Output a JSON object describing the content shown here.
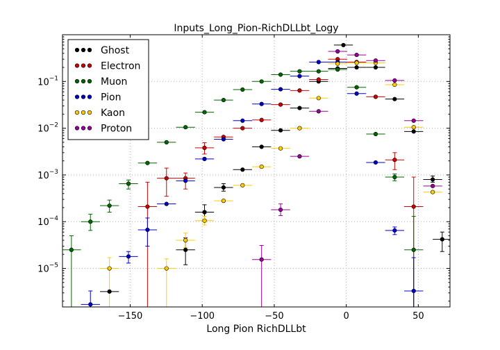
{
  "chart_data": {
    "type": "scatter",
    "title": "Inputs_Long_Pion-RichDLLbt_Logy",
    "xlabel": "Long Pion RichDLLbt",
    "ylabel": "",
    "xlim": [
      -197,
      72
    ],
    "ylim": [
      1.5e-06,
      1.0
    ],
    "yscale": "log",
    "bin_half_width": 6.6,
    "grid": true,
    "legend_position": "top-left",
    "x_ticks": [
      -150,
      -100,
      -50,
      0,
      50
    ],
    "x_tick_labels": [
      "−150",
      "−100",
      "−50",
      "0",
      "50"
    ],
    "y_ticks": [
      {
        "value": 1e-05,
        "base": "10",
        "exp": "−5"
      },
      {
        "value": 0.0001,
        "base": "10",
        "exp": "−4"
      },
      {
        "value": 0.001,
        "base": "10",
        "exp": "−3"
      },
      {
        "value": 0.01,
        "base": "10",
        "exp": "−2"
      },
      {
        "value": 0.1,
        "base": "10",
        "exp": "−1"
      }
    ],
    "series": [
      {
        "name": "Ghost",
        "color": "#000000",
        "points": [
          {
            "x": -164.4,
            "y": 3.2e-06
          },
          {
            "x": -111.6,
            "y": 2.5e-05,
            "lo": 1.2e-05,
            "hi": 4.5e-05
          },
          {
            "x": -98.4,
            "y": 0.00016,
            "lo": 0.00011,
            "hi": 0.00023
          },
          {
            "x": -85.2,
            "y": 0.00054,
            "lo": 0.00045,
            "hi": 0.00065
          },
          {
            "x": -72,
            "y": 0.0013
          },
          {
            "x": -58.8,
            "y": 0.004
          },
          {
            "x": -45.6,
            "y": 0.009
          },
          {
            "x": -32.4,
            "y": 0.027
          },
          {
            "x": -19.2,
            "y": 0.1
          },
          {
            "x": -6,
            "y": 0.19
          },
          {
            "x": -2,
            "y": 0.6
          },
          {
            "x": 7.2,
            "y": 0.2
          },
          {
            "x": 20.4,
            "y": 0.2
          },
          {
            "x": 33.6,
            "y": 0.042
          },
          {
            "x": 46.8,
            "y": 0.0085
          },
          {
            "x": 60,
            "y": 0.0008,
            "lo": 0.0007,
            "hi": 0.00095
          },
          {
            "x": 66.6,
            "y": 4.2e-05,
            "lo": 2.3e-05,
            "hi": 6e-05
          }
        ]
      },
      {
        "name": "Electron",
        "color": "#cc0000",
        "points": [
          {
            "x": -138,
            "y": 0.00021,
            "lo": 1.5e-06,
            "hi": 0.0007
          },
          {
            "x": -124.8,
            "y": 0.00085,
            "lo": 0.00035,
            "hi": 0.0014
          },
          {
            "x": -111.6,
            "y": 0.00085,
            "lo": 0.0005,
            "hi": 0.0011
          },
          {
            "x": -98.4,
            "y": 0.0038,
            "lo": 0.0028,
            "hi": 0.0049
          },
          {
            "x": -85.2,
            "y": 0.0065
          },
          {
            "x": -72,
            "y": 0.01
          },
          {
            "x": -58.8,
            "y": 0.015
          },
          {
            "x": -45.6,
            "y": 0.032
          },
          {
            "x": -32.4,
            "y": 0.064
          },
          {
            "x": -19.2,
            "y": 0.11
          },
          {
            "x": -6,
            "y": 0.3
          },
          {
            "x": 7.2,
            "y": 0.26
          },
          {
            "x": 20.4,
            "y": 0.047
          },
          {
            "x": 33.6,
            "y": 0.0021,
            "lo": 0.0013,
            "hi": 0.003
          },
          {
            "x": 46.8,
            "y": 0.00021,
            "lo": 1.5e-06,
            "hi": 0.0009
          }
        ]
      },
      {
        "name": "Muon",
        "color": "#006600",
        "points": [
          {
            "x": -190.8,
            "y": 2.5e-05,
            "lo": 1.5e-06,
            "hi": 5e-05
          },
          {
            "x": -177.6,
            "y": 0.0001,
            "lo": 6.5e-05,
            "hi": 0.000145
          },
          {
            "x": -164.4,
            "y": 0.00022,
            "lo": 0.00016,
            "hi": 0.00029
          },
          {
            "x": -151.2,
            "y": 0.00065,
            "lo": 0.0005,
            "hi": 0.00078
          },
          {
            "x": -138,
            "y": 0.0018
          },
          {
            "x": -124.8,
            "y": 0.005
          },
          {
            "x": -111.6,
            "y": 0.0105
          },
          {
            "x": -98.4,
            "y": 0.022
          },
          {
            "x": -85.2,
            "y": 0.04
          },
          {
            "x": -72,
            "y": 0.067
          },
          {
            "x": -58.8,
            "y": 0.1
          },
          {
            "x": -45.6,
            "y": 0.14
          },
          {
            "x": -32.4,
            "y": 0.165
          },
          {
            "x": -19.2,
            "y": 0.165
          },
          {
            "x": -6,
            "y": 0.18
          },
          {
            "x": 7.2,
            "y": 0.075
          },
          {
            "x": 20.4,
            "y": 0.0075
          },
          {
            "x": 33.6,
            "y": 0.0009,
            "lo": 0.00075,
            "hi": 0.00105
          },
          {
            "x": 46.8,
            "y": 2.5e-05,
            "lo": 1.5e-06,
            "hi": 0.00013
          }
        ]
      },
      {
        "name": "Pion",
        "color": "#0000cc",
        "points": [
          {
            "x": -177.6,
            "y": 1.7e-06,
            "lo": 1.5e-06,
            "hi": 3.3e-06
          },
          {
            "x": -151.2,
            "y": 1.8e-05,
            "lo": 1.3e-05,
            "hi": 2.3e-05
          },
          {
            "x": -138,
            "y": 6.7e-05,
            "lo": 3e-05,
            "hi": 0.00012
          },
          {
            "x": -124.8,
            "y": 0.00024
          },
          {
            "x": -111.6,
            "y": 0.00075
          },
          {
            "x": -98.4,
            "y": 0.0022
          },
          {
            "x": -85.2,
            "y": 0.0058
          },
          {
            "x": -72,
            "y": 0.0145
          },
          {
            "x": -58.8,
            "y": 0.033
          },
          {
            "x": -45.6,
            "y": 0.068
          },
          {
            "x": -32.4,
            "y": 0.13
          },
          {
            "x": -19.2,
            "y": 0.26
          },
          {
            "x": -6,
            "y": 0.26
          },
          {
            "x": 7.2,
            "y": 0.055
          },
          {
            "x": 20.4,
            "y": 0.00185
          },
          {
            "x": 33.6,
            "y": 6.5e-05,
            "lo": 5.3e-05,
            "hi": 7.7e-05
          },
          {
            "x": 46.8,
            "y": 3.3e-06,
            "lo": 1.5e-06,
            "hi": 1.7e-05
          }
        ]
      },
      {
        "name": "Kaon",
        "color": "#ffcc00",
        "points": [
          {
            "x": -164.4,
            "y": 1e-05,
            "lo": 1.5e-06,
            "hi": 1.7e-05
          },
          {
            "x": -124.8,
            "y": 1e-05,
            "lo": 1.5e-06,
            "hi": 1.6e-05
          },
          {
            "x": -111.6,
            "y": 4e-05,
            "lo": 2.8e-05,
            "hi": 5.7e-05
          },
          {
            "x": -98.4,
            "y": 0.000105,
            "lo": 8.5e-05,
            "hi": 0.00013
          },
          {
            "x": -85.2,
            "y": 0.00028
          },
          {
            "x": -72,
            "y": 0.0006
          },
          {
            "x": -58.8,
            "y": 0.0015
          },
          {
            "x": -45.6,
            "y": 0.0037
          },
          {
            "x": -32.4,
            "y": 0.01
          },
          {
            "x": -19.2,
            "y": 0.044
          },
          {
            "x": -6,
            "y": 0.24
          },
          {
            "x": 7.2,
            "y": 0.25
          },
          {
            "x": 20.4,
            "y": 0.25
          },
          {
            "x": 33.6,
            "y": 0.085
          },
          {
            "x": 46.8,
            "y": 0.0105
          },
          {
            "x": 60,
            "y": 0.00043
          }
        ]
      },
      {
        "name": "Proton",
        "color": "#990099",
        "points": [
          {
            "x": -58.8,
            "y": 1.55e-05,
            "lo": 1.5e-06,
            "hi": 3.1e-05
          },
          {
            "x": -45.6,
            "y": 0.00018,
            "lo": 0.000135,
            "hi": 0.00024
          },
          {
            "x": -32.4,
            "y": 0.0025
          },
          {
            "x": -19.2,
            "y": 0.023
          },
          {
            "x": -6,
            "y": 0.44
          },
          {
            "x": 7.2,
            "y": 0.37
          },
          {
            "x": 20.4,
            "y": 0.28
          },
          {
            "x": 33.6,
            "y": 0.105
          },
          {
            "x": 46.8,
            "y": 0.0145
          },
          {
            "x": 60,
            "y": 0.00058
          }
        ]
      }
    ]
  }
}
